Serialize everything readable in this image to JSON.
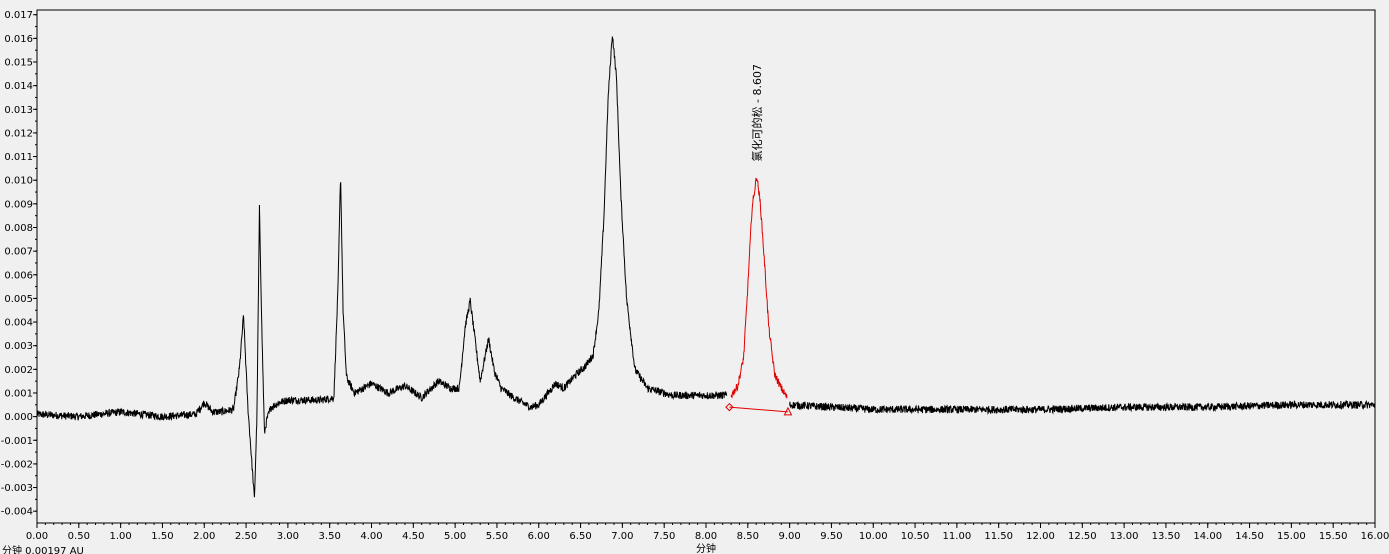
{
  "chart_data": {
    "type": "line",
    "title": "",
    "xlabel": "分钟",
    "ylabel": "",
    "xlim": [
      0.0,
      16.0
    ],
    "ylim": [
      -0.0045,
      0.0172
    ],
    "x_ticks": [
      "0.00",
      "0.50",
      "1.00",
      "1.50",
      "2.00",
      "2.50",
      "3.00",
      "3.50",
      "4.00",
      "4.50",
      "5.00",
      "5.50",
      "6.00",
      "6.50",
      "7.00",
      "7.50",
      "8.00",
      "8.50",
      "9.00",
      "9.50",
      "10.00",
      "10.50",
      "11.00",
      "11.50",
      "12.00",
      "12.50",
      "13.00",
      "13.50",
      "14.00",
      "14.50",
      "15.00",
      "15.50",
      "16.00"
    ],
    "y_ticks": [
      "-0.004",
      "-0.003",
      "-0.002",
      "-0.001",
      "0.000",
      "0.001",
      "0.002",
      "0.003",
      "0.004",
      "0.005",
      "0.006",
      "0.007",
      "0.008",
      "0.009",
      "0.010",
      "0.011",
      "0.012",
      "0.013",
      "0.014",
      "0.015",
      "0.016",
      "0.017"
    ],
    "status_readout": "分钟  0.00197 AU",
    "grid": false,
    "colors": {
      "trace": "#000000",
      "integrated_peak": "#e00000",
      "background": "#f0f0f0"
    },
    "series": [
      {
        "name": "",
        "color": "#000000",
        "x": [
          0.0,
          0.5,
          1.0,
          1.5,
          1.9,
          2.0,
          2.1,
          2.2,
          2.35,
          2.42,
          2.47,
          2.52,
          2.57,
          2.6,
          2.63,
          2.66,
          2.69,
          2.72,
          2.75,
          2.8,
          2.9,
          3.0,
          3.2,
          3.4,
          3.55,
          3.6,
          3.63,
          3.66,
          3.7,
          3.75,
          3.8,
          3.9,
          4.0,
          4.2,
          4.4,
          4.6,
          4.8,
          4.95,
          5.05,
          5.12,
          5.18,
          5.23,
          5.3,
          5.35,
          5.4,
          5.47,
          5.55,
          5.7,
          5.9,
          6.0,
          6.2,
          6.3,
          6.45,
          6.55,
          6.65,
          6.72,
          6.78,
          6.83,
          6.88,
          6.93,
          6.98,
          7.05,
          7.15,
          7.3,
          7.6,
          7.9,
          8.1,
          8.25
        ],
        "values": [
          0.0001,
          0.0,
          0.0002,
          0.0,
          0.0001,
          0.0006,
          0.0002,
          0.0002,
          0.0003,
          0.002,
          0.0043,
          0.0005,
          -0.002,
          -0.0035,
          0.0,
          0.0088,
          0.0035,
          -0.0007,
          -0.0001,
          0.0004,
          0.0006,
          0.0007,
          0.0007,
          0.0007,
          0.0008,
          0.0055,
          0.0103,
          0.0045,
          0.0017,
          0.0013,
          0.001,
          0.0012,
          0.0014,
          0.001,
          0.0013,
          0.0008,
          0.0015,
          0.0012,
          0.0012,
          0.0038,
          0.0049,
          0.0035,
          0.0015,
          0.0024,
          0.0033,
          0.0019,
          0.0012,
          0.0008,
          0.0004,
          0.0005,
          0.0014,
          0.0012,
          0.0018,
          0.0021,
          0.0026,
          0.0045,
          0.0085,
          0.0135,
          0.0162,
          0.0143,
          0.0095,
          0.005,
          0.002,
          0.0012,
          0.0009,
          0.0009,
          0.0009,
          0.0009
        ]
      },
      {
        "name": "氯化可的松",
        "color": "#e00000",
        "x": [
          8.3,
          8.38,
          8.45,
          8.5,
          8.55,
          8.607,
          8.65,
          8.7,
          8.75,
          8.82,
          8.9,
          8.97
        ],
        "values": [
          0.0009,
          0.0013,
          0.0025,
          0.0055,
          0.0088,
          0.0102,
          0.009,
          0.0065,
          0.0038,
          0.0018,
          0.0012,
          0.0008
        ]
      },
      {
        "name": "",
        "color": "#000000",
        "x": [
          9.0,
          9.5,
          10.0,
          11.0,
          12.0,
          13.0,
          14.0,
          15.0,
          15.5,
          16.0
        ],
        "values": [
          0.0005,
          0.0004,
          0.0003,
          0.0003,
          0.0003,
          0.0004,
          0.0004,
          0.0005,
          0.0005,
          0.0005
        ]
      }
    ],
    "baseline": {
      "start": {
        "x": 8.28,
        "y": 0.0004
      },
      "end": {
        "x": 8.98,
        "y": 0.0002
      }
    },
    "annotations": [
      {
        "text": "氯化可的松 - 8.607",
        "x": 8.607,
        "y": 0.0102
      }
    ]
  }
}
